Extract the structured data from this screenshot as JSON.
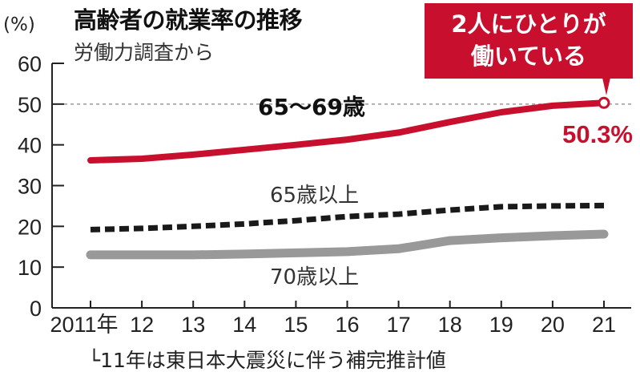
{
  "header": {
    "title": "高齢者の就業率の推移",
    "subtitle": "労働力調査から",
    "unit": "(%)"
  },
  "callout": {
    "line1": "2人にひとりが",
    "line2": "働いている"
  },
  "footnote": "11年は東日本大震災に伴う補完推計値",
  "colors": {
    "accent_red": "#c8102e",
    "dashed_black": "#1a1a1a",
    "gray_line": "#999999",
    "reference_line": "#999999"
  },
  "chart_data": {
    "type": "line",
    "title": "高齢者の就業率の推移",
    "subtitle": "労働力調査から",
    "xlabel": "",
    "ylabel": "(%)",
    "x": [
      "2011年",
      "12",
      "13",
      "14",
      "15",
      "16",
      "17",
      "18",
      "19",
      "20",
      "21"
    ],
    "ylim": [
      0,
      60
    ],
    "yticks": [
      0,
      10,
      20,
      30,
      40,
      50,
      60
    ],
    "grid": false,
    "reference_line": {
      "y": 50,
      "style": "dotted gray"
    },
    "series": [
      {
        "name": "65〜69歳",
        "style": "solid red thick",
        "values": [
          36.2,
          36.6,
          37.6,
          38.8,
          40.0,
          41.3,
          43.0,
          45.6,
          48.0,
          49.6,
          50.3
        ]
      },
      {
        "name": "65歳以上",
        "style": "dashed black",
        "values": [
          19.2,
          19.5,
          20.0,
          20.6,
          21.4,
          22.4,
          23.0,
          24.0,
          24.8,
          25.0,
          25.1
        ]
      },
      {
        "name": "70歳以上",
        "style": "solid gray thick",
        "values": [
          13.0,
          13.0,
          13.0,
          13.2,
          13.5,
          13.8,
          14.5,
          16.5,
          17.2,
          17.7,
          18.1
        ]
      }
    ],
    "annotations": [
      {
        "text": "50.3%",
        "x": "21",
        "series": "65〜69歳"
      },
      {
        "text": "2人にひとりが働いている",
        "x": "21",
        "series": "65〜69歳"
      },
      {
        "text": "11年は東日本大震災に伴う補完推計値",
        "x": "2011年"
      }
    ],
    "legend": "inline labels"
  }
}
